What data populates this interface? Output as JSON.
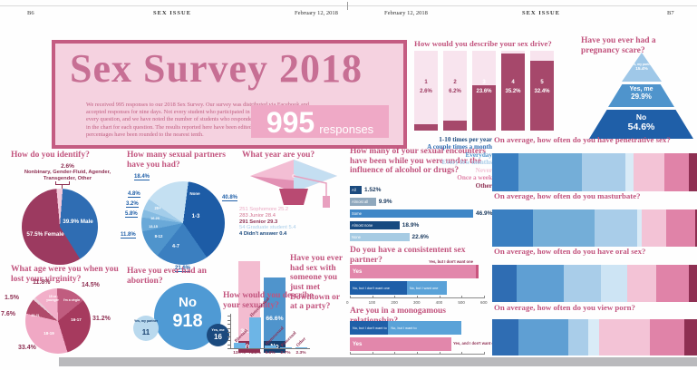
{
  "ui": {
    "header": {
      "left_folio": "B6",
      "issue": "SEX ISSUE",
      "date": "February 12, 2018",
      "right_folio": "B7"
    },
    "masthead": {
      "title": "Sex Survey 2018",
      "intro": "We received 995 responses to our 2018 Sex Survey. Our survey was distributed via Facebook and accepted responses for nine days. Not every student who participated in the survey responded to every question, and we have noted the number of students who responded to individual questions in the chart for each question. The results reported here have been edited for clarity and the percentages have been rounded to the nearest tenth.",
      "number": "995",
      "number_label": "responses"
    },
    "identify": {
      "title": "How do you identify?",
      "callout_pct": "2.6%",
      "callout_label": "Nonbinary, Gender-Fluid, Agender, Transgender, Other",
      "male_label": "39.9% Male",
      "female_label": "57.5% Female",
      "pie": {
        "start": -5,
        "slices": [
          {
            "label": "Other",
            "value": 2.6,
            "color": "#f3c8da"
          },
          {
            "label": "Male",
            "value": 39.9,
            "color": "#2f6db3"
          },
          {
            "label": "Female",
            "value": 57.5,
            "color": "#9c3a60"
          }
        ]
      }
    },
    "partners": {
      "title": "How many sexual partners have you had?",
      "pie": {
        "start": -55,
        "slices": [
          {
            "label": "None",
            "pct": "18.4%",
            "value": 18.4,
            "color": "#c4e0f2"
          },
          {
            "label": "1-3",
            "pct": "40.8%",
            "value": 40.8,
            "color": "#1d5ca6"
          },
          {
            "label": "4-7",
            "pct": "21.6%",
            "value": 21.6,
            "color": "#3b7fc0"
          },
          {
            "label": "8-12",
            "pct": "11.8%",
            "value": 11.8,
            "color": "#4f94cc"
          },
          {
            "label": "13-15",
            "pct": "5.8%",
            "value": 5.8,
            "color": "#6aa9d8"
          },
          {
            "label": "16-20",
            "pct": "3.2%",
            "value": 3.2,
            "color": "#86bce2"
          },
          {
            "label": "20+",
            "pct": "4.8%",
            "value": 4.8,
            "color": "#a3cdea"
          }
        ]
      }
    },
    "year": {
      "title": "What year are you?",
      "lines": [
        {
          "text": "251 Sophomore 25.2",
          "color": "#eaa9c3",
          "bold": false
        },
        {
          "text": "283 Junior 28.4",
          "color": "#d2728f",
          "bold": false
        },
        {
          "text": "291 Senior 29.3",
          "color": "#8e2f52",
          "bold": true
        },
        {
          "text": "54 Graduate student 5.4",
          "color": "#a9cde9",
          "bold": false
        },
        {
          "text": "4 Didn't answer 0.4",
          "color": "#1b4a7e",
          "bold": true
        }
      ]
    },
    "downtown": {
      "question": "Have you ever had sex with someone you just met Downtown or at a party?",
      "yes_pct": "33.3%",
      "yes_label": "Yes",
      "no_pct": "66.6%",
      "no_label": "No"
    },
    "virginity": {
      "title": "What age were you when you lost your virginity?",
      "pie": {
        "start": -44,
        "slices": [
          {
            "label": "15 or younger",
            "pct": "11.8%",
            "value": 11.8,
            "color": "#f2afc9"
          },
          {
            "label": "I'm a virgin",
            "pct": "14.5%",
            "value": 14.5,
            "color": "#c05c7f"
          },
          {
            "label": "16-17",
            "pct": "31.2%",
            "value": 31.2,
            "color": "#a63a5e"
          },
          {
            "label": "18-19",
            "pct": "33.4%",
            "value": 33.4,
            "color": "#f0a8c4"
          },
          {
            "label": "20-21",
            "pct": "7.6%",
            "value": 7.6,
            "color": "#b04a6a"
          },
          {
            "label": "22+",
            "pct": "1.5%",
            "value": 1.5,
            "color": "#e9c9d6"
          }
        ]
      }
    },
    "abortion": {
      "title": "Have you ever had an abortion?",
      "no_label": "No",
      "no_count": "918",
      "partner_label": "Yes, my partner",
      "partner_count": "11",
      "me_label": "Yes, me",
      "me_count": "16"
    },
    "sexuality": {
      "title": "How would you describe your sexuality?",
      "bars": [
        {
          "label": "Bisexual",
          "pct": "13.7%",
          "value": 13.7
        },
        {
          "label": "Heterosexual",
          "pct": "74.8%",
          "value": 74.8
        },
        {
          "label": "Homosexual",
          "pct": "5.6%",
          "value": 5.6
        },
        {
          "label": "Pansexual",
          "pct": "2.7%",
          "value": 2.7
        },
        {
          "label": "Other",
          "pct": "2.3%",
          "value": 2.3
        }
      ]
    },
    "influence": {
      "title": "How many of your sexual encounters have been while you were under the influence of alcohol or drugs?",
      "rows": [
        {
          "label": "All",
          "pct": "1.52%",
          "value": 1.52,
          "color": "#1b4a7e"
        },
        {
          "label": "Almost all",
          "pct": "9.9%",
          "value": 9.9,
          "color": "#8fa8bd"
        },
        {
          "label": "Some",
          "pct": "46.9%",
          "value": 46.9,
          "color": "#3f87c7"
        },
        {
          "label": "Almost none",
          "pct": "18.9%",
          "value": 18.9,
          "color": "#174a80"
        },
        {
          "label": "None",
          "pct": "22.6%",
          "value": 22.6,
          "color": "#a6cbe3"
        }
      ]
    },
    "consistent": {
      "title": "Do you have a consistentent sex partner?",
      "annotation": "Yes, but I don't want one",
      "yes_segments": [
        {
          "label": "Yes",
          "value": 540,
          "color": "#e287ab"
        },
        {
          "value": 15,
          "color": "#c9557e"
        }
      ],
      "no_segments": [
        {
          "label": "No, but I don't want one",
          "value": 245,
          "color": "#1f5fa8"
        },
        {
          "label": "No, but I want one",
          "value": 170,
          "color": "#5aa2d8"
        }
      ],
      "axis": [
        "0",
        "100",
        "200",
        "300",
        "400",
        "500",
        "600"
      ]
    },
    "monogamous": {
      "title": "Are you in a monogamous relationship?",
      "annotation": "Yes, and I don't want one",
      "no_segments": [
        {
          "label": "No, but I don't want to",
          "value": 165,
          "color": "#1f5fa8"
        },
        {
          "label": "No, but I want to",
          "value": 315,
          "color": "#5aa2d8"
        }
      ],
      "yes_segments": [
        {
          "label": "Yes",
          "value": 435,
          "color": "#e287ab"
        }
      ],
      "axis": [
        "0",
        "100",
        "200",
        "300",
        "400",
        "500",
        "600"
      ]
    },
    "sexdrive": {
      "title": "How would you describe your sex drive?",
      "bars": [
        {
          "num": "1",
          "pct": "2.6%",
          "fill": 8
        },
        {
          "num": "2",
          "pct": "6.2%",
          "fill": 13
        },
        {
          "num": "3",
          "pct": "23.6%",
          "fill": 57
        },
        {
          "num": "4",
          "pct": "35.2%",
          "fill": 97
        },
        {
          "num": "5",
          "pct": "32.4%",
          "fill": 88
        }
      ]
    },
    "frequency": {
      "legend": [
        {
          "label": "1-10 times per year",
          "color": "#1b4a7e"
        },
        {
          "label": "A couple times a month",
          "color": "#2f6db3"
        },
        {
          "label": "Everyday",
          "color": "#4f94cc"
        },
        {
          "label": "Every few months",
          "color": "#a9cde9"
        },
        {
          "label": "Never",
          "color": "#f3c3d6"
        },
        {
          "label": "Once a week",
          "color": "#e083a8"
        },
        {
          "label": "Other",
          "color": "#8e2f52"
        }
      ],
      "charts": [
        {
          "title": "On average, how often do you have penetrative sex?",
          "segments": [
            {
              "value": 13,
              "color": "#3a7fc1"
            },
            {
              "value": 31,
              "color": "#74aed8"
            },
            {
              "value": 21,
              "color": "#a9cde9"
            },
            {
              "value": 4,
              "color": "#d9ebf7"
            },
            {
              "value": 15,
              "color": "#f3c3d6"
            },
            {
              "value": 12,
              "color": "#e083a8"
            },
            {
              "value": 4,
              "color": "#8e2f52"
            }
          ]
        },
        {
          "title": "On average, how often do you masturbate?",
          "segments": [
            {
              "value": 20,
              "color": "#3a7fc1"
            },
            {
              "value": 30,
              "color": "#74aed8"
            },
            {
              "value": 21,
              "color": "#a9cde9"
            },
            {
              "value": 2,
              "color": "#d9ebf7"
            },
            {
              "value": 12,
              "color": "#f3c3d6"
            },
            {
              "value": 14,
              "color": "#e083a8"
            },
            {
              "value": 1,
              "color": "#8e2f52"
            }
          ]
        },
        {
          "title": "On average, how often do you have oral sex?",
          "segments": [
            {
              "value": 12,
              "color": "#2f6db3"
            },
            {
              "value": 23,
              "color": "#5f9fd3"
            },
            {
              "value": 18,
              "color": "#a9cde9"
            },
            {
              "value": 13,
              "color": "#cde4f4"
            },
            {
              "value": 14,
              "color": "#f3c3d6"
            },
            {
              "value": 16,
              "color": "#e083a8"
            },
            {
              "value": 4,
              "color": "#8e2f52"
            }
          ]
        },
        {
          "title": "On average, how often do you view porn?",
          "segments": [
            {
              "value": 13,
              "color": "#2f6db3"
            },
            {
              "value": 24,
              "color": "#5f9fd3"
            },
            {
              "value": 10,
              "color": "#a9cde9"
            },
            {
              "value": 5,
              "color": "#d9ebf7"
            },
            {
              "value": 25,
              "color": "#f3c3d6"
            },
            {
              "value": 17,
              "color": "#e083a8"
            },
            {
              "value": 6,
              "color": "#8e2f52"
            }
          ]
        }
      ]
    },
    "pregnancy": {
      "title": "Have you ever had a pregnancy scare?",
      "top_label": "Yes, my partner",
      "top_pct": "15.4%",
      "mid_label": "Yes, me",
      "mid_pct": "29.9%",
      "bottom_label": "No",
      "bottom_pct": "54.6%"
    }
  },
  "chart_data": [
    {
      "id": "identify",
      "type": "pie",
      "title": "How do you identify?",
      "labels": [
        "Male",
        "Female",
        "Nonbinary, Gender-Fluid, Agender, Transgender, Other"
      ],
      "values": [
        39.9,
        57.5,
        2.6
      ]
    },
    {
      "id": "partners",
      "type": "pie",
      "title": "How many sexual partners have you had?",
      "labels": [
        "None",
        "1-3",
        "4-7",
        "8-12",
        "13-15",
        "16-20",
        "20+"
      ],
      "values": [
        18.4,
        40.8,
        21.6,
        11.8,
        5.8,
        3.2,
        4.8
      ]
    },
    {
      "id": "year",
      "type": "table",
      "title": "What year are you?",
      "rows": [
        [
          "251",
          "Sophomore",
          "25.2"
        ],
        [
          "283",
          "Junior",
          "28.4"
        ],
        [
          "291",
          "Senior",
          "29.3"
        ],
        [
          "54",
          "Graduate student",
          "5.4"
        ],
        [
          "4",
          "Didn't answer",
          "0.4"
        ]
      ]
    },
    {
      "id": "downtown",
      "type": "bar",
      "title": "Have you ever had sex with someone you just met Downtown or at a party?",
      "categories": [
        "Yes",
        "No"
      ],
      "values": [
        33.3,
        66.6
      ]
    },
    {
      "id": "virginity",
      "type": "pie",
      "title": "What age were you when you lost your virginity?",
      "labels": [
        "15 or younger",
        "I'm a virgin",
        "16-17",
        "18-19",
        "20-21",
        "22+"
      ],
      "values": [
        11.8,
        14.5,
        31.2,
        33.4,
        7.6,
        1.5
      ]
    },
    {
      "id": "abortion",
      "type": "bubble",
      "title": "Have you ever had an abortion?",
      "labels": [
        "No",
        "Yes, me",
        "Yes, my partner"
      ],
      "values": [
        918,
        16,
        11
      ]
    },
    {
      "id": "sexuality",
      "type": "bar",
      "title": "How would you describe your sexuality?",
      "categories": [
        "Bisexual",
        "Heterosexual",
        "Homosexual",
        "Pansexual",
        "Other"
      ],
      "values": [
        13.7,
        74.8,
        5.6,
        2.7,
        2.3
      ],
      "ylim": [
        0,
        80
      ]
    },
    {
      "id": "influence",
      "type": "bar",
      "title": "How many of your sexual encounters have been while you were under the influence of alcohol or drugs?",
      "categories": [
        "All",
        "Almost all",
        "Some",
        "Almost none",
        "None"
      ],
      "values": [
        1.52,
        9.9,
        46.9,
        18.9,
        22.6
      ]
    },
    {
      "id": "consistent",
      "type": "bar",
      "title": "Do you have a consistentent sex partner?",
      "categories": [
        "Yes",
        "No, but I don't want one",
        "No, but I want one"
      ],
      "values": [
        555,
        245,
        170
      ],
      "xlim": [
        0,
        600
      ]
    },
    {
      "id": "monogamous",
      "type": "bar",
      "title": "Are you in a monogamous relationship?",
      "categories": [
        "No, but I don't want to",
        "No, but I want to",
        "Yes"
      ],
      "values": [
        165,
        315,
        435
      ],
      "xlim": [
        0,
        600
      ]
    },
    {
      "id": "sexdrive",
      "type": "bar",
      "title": "How would you describe your sex drive?",
      "categories": [
        "1",
        "2",
        "3",
        "4",
        "5"
      ],
      "values": [
        2.6,
        6.2,
        23.6,
        35.2,
        32.4
      ]
    },
    {
      "id": "pregnancy",
      "type": "pie",
      "title": "Have you ever had a pregnancy scare?",
      "labels": [
        "Yes, my partner",
        "Yes, me",
        "No"
      ],
      "values": [
        15.4,
        29.9,
        54.6
      ]
    },
    {
      "id": "frequency",
      "type": "heatmap",
      "title": "On average, how often do you…",
      "categories": [
        "1-10 times per year",
        "A couple times a month",
        "Everyday",
        "Every few months",
        "Never",
        "Once a week",
        "Other"
      ],
      "series": [
        {
          "name": "have penetrative sex",
          "values": [
            13,
            31,
            21,
            4,
            15,
            12,
            4
          ]
        },
        {
          "name": "masturbate",
          "values": [
            20,
            30,
            21,
            2,
            12,
            14,
            1
          ]
        },
        {
          "name": "have oral sex",
          "values": [
            12,
            23,
            18,
            13,
            14,
            16,
            4
          ]
        },
        {
          "name": "view porn",
          "values": [
            13,
            24,
            10,
            5,
            25,
            17,
            6
          ]
        }
      ]
    }
  ]
}
